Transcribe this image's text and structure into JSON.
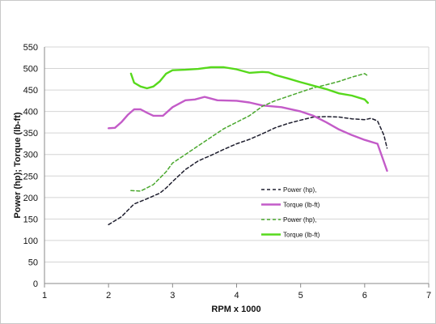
{
  "chart_data": {
    "type": "line",
    "xlabel": "RPM x 1000",
    "ylabel": "Power (hp); Torque (lb-ft)",
    "xlim": [
      1,
      7
    ],
    "ylim": [
      0,
      550
    ],
    "xticks": [
      "1",
      "2",
      "3",
      "4",
      "5",
      "6",
      "7"
    ],
    "yticks": [
      "0",
      "50",
      "100",
      "150",
      "200",
      "250",
      "300",
      "350",
      "400",
      "450",
      "500",
      "550"
    ],
    "grid": "horizontal",
    "legend_position": "center-right",
    "series": [
      {
        "name": "Power (hp),",
        "color": "#1e1e2e",
        "style": "dashed",
        "points": [
          [
            2.0,
            137
          ],
          [
            2.2,
            155
          ],
          [
            2.4,
            185
          ],
          [
            2.6,
            197
          ],
          [
            2.8,
            210
          ],
          [
            2.9,
            222
          ],
          [
            3.0,
            237
          ],
          [
            3.2,
            265
          ],
          [
            3.4,
            285
          ],
          [
            3.6,
            298
          ],
          [
            3.8,
            312
          ],
          [
            4.0,
            325
          ],
          [
            4.2,
            335
          ],
          [
            4.4,
            348
          ],
          [
            4.6,
            362
          ],
          [
            4.8,
            372
          ],
          [
            5.0,
            380
          ],
          [
            5.2,
            387
          ],
          [
            5.4,
            388
          ],
          [
            5.6,
            387
          ],
          [
            5.8,
            383
          ],
          [
            6.0,
            381
          ],
          [
            6.1,
            384
          ],
          [
            6.2,
            378
          ],
          [
            6.3,
            345
          ],
          [
            6.35,
            315
          ]
        ]
      },
      {
        "name": "Torque (lb-ft)",
        "color": "#c35bc8",
        "style": "solid",
        "points": [
          [
            2.0,
            361
          ],
          [
            2.1,
            362
          ],
          [
            2.2,
            375
          ],
          [
            2.3,
            392
          ],
          [
            2.4,
            405
          ],
          [
            2.5,
            405
          ],
          [
            2.6,
            397
          ],
          [
            2.7,
            390
          ],
          [
            2.85,
            390
          ],
          [
            3.0,
            410
          ],
          [
            3.2,
            426
          ],
          [
            3.35,
            428
          ],
          [
            3.5,
            434
          ],
          [
            3.7,
            426
          ],
          [
            4.0,
            425
          ],
          [
            4.2,
            421
          ],
          [
            4.4,
            414
          ],
          [
            4.7,
            410
          ],
          [
            5.0,
            400
          ],
          [
            5.2,
            390
          ],
          [
            5.4,
            375
          ],
          [
            5.6,
            358
          ],
          [
            5.8,
            345
          ],
          [
            6.0,
            334
          ],
          [
            6.2,
            325
          ],
          [
            6.35,
            262
          ]
        ]
      },
      {
        "name": "Power (hp),",
        "color": "#4aa82e",
        "style": "dashed",
        "points": [
          [
            2.35,
            216
          ],
          [
            2.5,
            215
          ],
          [
            2.7,
            230
          ],
          [
            2.9,
            260
          ],
          [
            3.0,
            280
          ],
          [
            3.2,
            300
          ],
          [
            3.4,
            320
          ],
          [
            3.6,
            340
          ],
          [
            3.8,
            360
          ],
          [
            4.0,
            375
          ],
          [
            4.2,
            390
          ],
          [
            4.4,
            412
          ],
          [
            4.6,
            425
          ],
          [
            4.8,
            435
          ],
          [
            5.0,
            445
          ],
          [
            5.2,
            455
          ],
          [
            5.4,
            462
          ],
          [
            5.6,
            470
          ],
          [
            5.8,
            480
          ],
          [
            6.0,
            488
          ],
          [
            6.05,
            483
          ]
        ]
      },
      {
        "name": "Torque (lb-ft)",
        "color": "#57d91c",
        "style": "solid",
        "points": [
          [
            2.35,
            488
          ],
          [
            2.4,
            467
          ],
          [
            2.5,
            458
          ],
          [
            2.6,
            454
          ],
          [
            2.7,
            458
          ],
          [
            2.8,
            470
          ],
          [
            2.9,
            488
          ],
          [
            3.0,
            496
          ],
          [
            3.2,
            497
          ],
          [
            3.4,
            499
          ],
          [
            3.6,
            503
          ],
          [
            3.8,
            503
          ],
          [
            4.0,
            498
          ],
          [
            4.2,
            490
          ],
          [
            4.4,
            492
          ],
          [
            4.5,
            491
          ],
          [
            4.6,
            485
          ],
          [
            4.8,
            477
          ],
          [
            5.0,
            468
          ],
          [
            5.2,
            460
          ],
          [
            5.4,
            452
          ],
          [
            5.6,
            442
          ],
          [
            5.8,
            437
          ],
          [
            6.0,
            428
          ],
          [
            6.05,
            420
          ]
        ]
      }
    ]
  }
}
